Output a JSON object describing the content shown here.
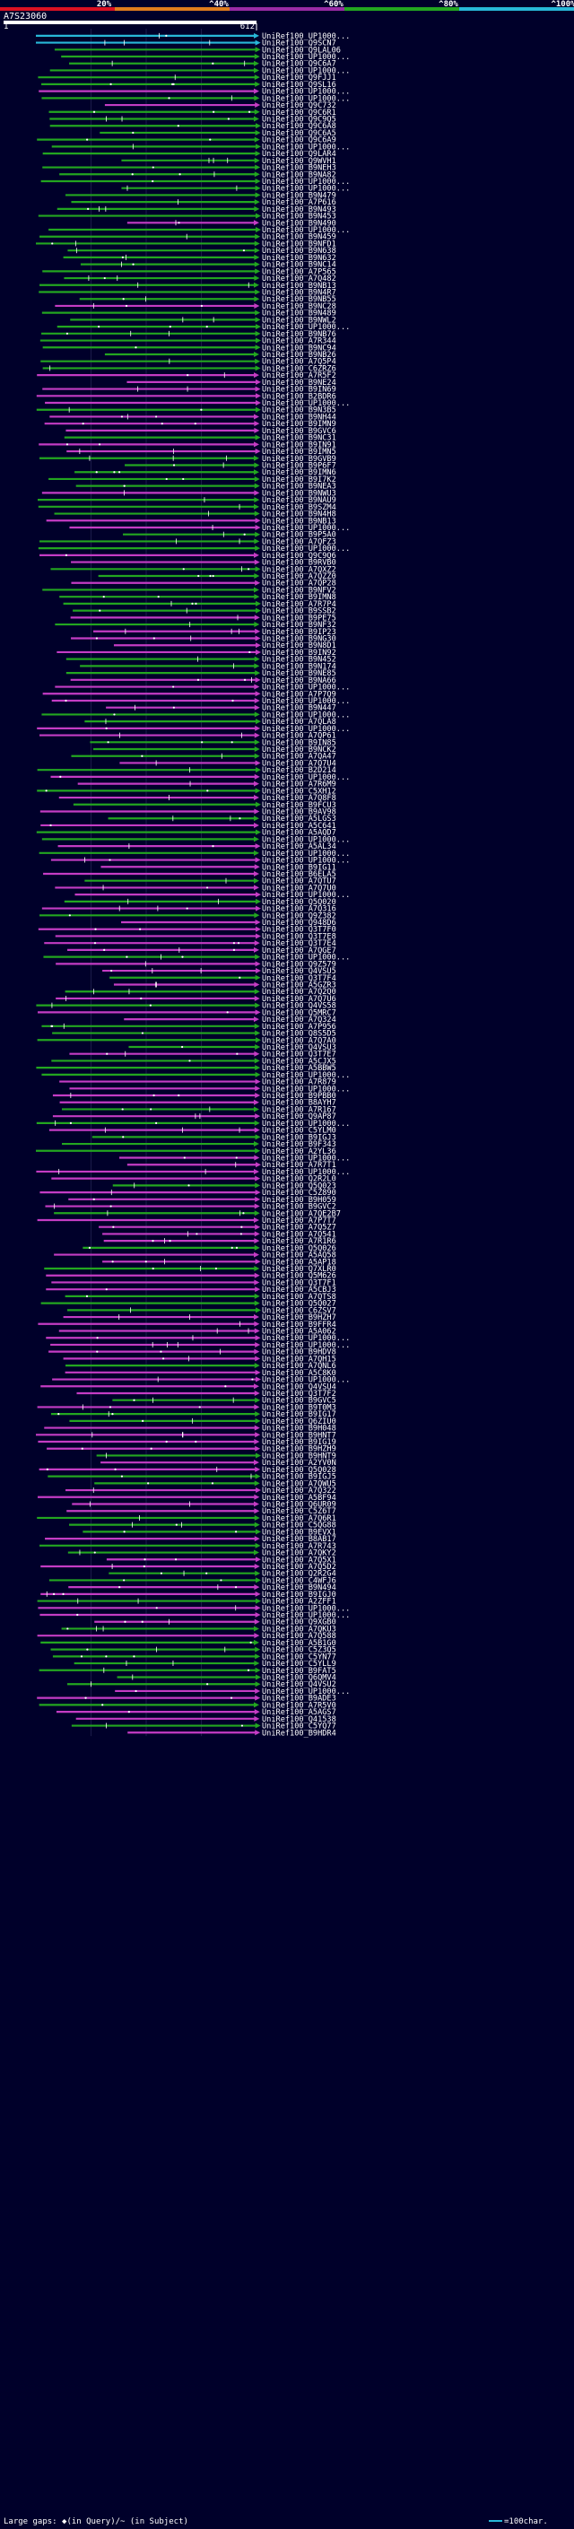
{
  "chart_data": {
    "type": "alignment-overview",
    "query_id": "A7S23060",
    "query_length": 612,
    "axis_ticks": [
      "1",
      "612"
    ],
    "identity_scale": {
      "labels": [
        "20%",
        "^40%",
        "^60%",
        "^80%",
        "^100%"
      ],
      "colors": [
        "#dd1122",
        "#e07c1c",
        "#9a2ba6",
        "#23a620",
        "#28b8d8"
      ]
    },
    "hits": [
      "UniRef100_UP1000...",
      "UniRef100_Q9SCN7",
      "UniRef100_Q9LAL06",
      "UniRef100_UP1000...",
      "UniRef100_Q9C6A7",
      "UniRef100_UP1000...",
      "UniRef100_Q9FJJ1",
      "UniRef100_Q9SL16",
      "UniRef100_UP1000...",
      "UniRef100_UP1000...",
      "UniRef100_Q9C732",
      "UniRef100_Q9C6R1",
      "UniRef100_Q9C9Q5",
      "UniRef100_Q9C6A8",
      "UniRef100_Q9C6A5",
      "UniRef100_Q9C6A9",
      "UniRef100_UP1000...",
      "UniRef100_Q9LAR4",
      "UniRef100_Q9WVH1",
      "UniRef100_B9NEH3",
      "UniRef100_B9NA82",
      "UniRef100_UP1000...",
      "UniRef100_UP1000...",
      "UniRef100_B9N479",
      "UniRef100_A7P616",
      "UniRef100_B9N493",
      "UniRef100_B9N453",
      "UniRef100_B9N490",
      "UniRef100_UP1000...",
      "UniRef100_B9N459",
      "UniRef100_B9NFD1",
      "UniRef100_B9N638",
      "UniRef100_B9N632",
      "UniRef100_B9NC14",
      "UniRef100_A7P565",
      "UniRef100_A7Q482",
      "UniRef100_B9NB13",
      "UniRef100_B9N4R7",
      "UniRef100_B9NB55",
      "UniRef100_B9NC28",
      "UniRef100_B9N489",
      "UniRef100_B9NWL2",
      "UniRef100_UP1000...",
      "UniRef100_B9NB76",
      "UniRef100_A7R344",
      "UniRef100_B9NC94",
      "UniRef100_B9NB26",
      "UniRef100_A7Q5P4",
      "UniRef100_C6ZRZ6",
      "UniRef100_A7R5F2",
      "UniRef100_B9NE24",
      "UniRef100_B9IN69",
      "UniRef100_B2BDR6",
      "UniRef100_UP1000...",
      "UniRef100_B9N3B5",
      "UniRef100_B9NH44",
      "UniRef100_B9IMN9",
      "UniRef100_B9GVC6",
      "UniRef100_B9NC31",
      "UniRef100_B9IN91",
      "UniRef100_B9IMN5",
      "UniRef100_B9GVB9",
      "UniRef100_B9P6F7",
      "UniRef100_B9IMN6",
      "UniRef100_B9I7K2",
      "UniRef100_B9NEA3",
      "UniRef100_B9NWU3",
      "UniRef100_B9NAU9",
      "UniRef100_B9SZM4",
      "UniRef100_B9N4H8",
      "UniRef100_B9NB13",
      "UniRef100_UP1000...",
      "UniRef100_B9P5A0",
      "UniRef100_A7QFZ3",
      "UniRef100_UP1000...",
      "UniRef100_Q9C9Q6",
      "UniRef100_B9RVB0",
      "UniRef100_A7QXZ2",
      "UniRef100_A7QZZ0",
      "UniRef100_A7QP28",
      "UniRef100_B9NFV2",
      "UniRef100_B9IMN8",
      "UniRef100_A7R7P4",
      "UniRef100_B9SSB2",
      "UniRef100_B9PE75",
      "UniRef100_B9NF32",
      "UniRef100_B9IP23",
      "UniRef100_B9NG30",
      "UniRef100_B9N8D1",
      "UniRef100_B9IN92",
      "UniRef100_B9N452",
      "UniRef100_B9N174",
      "UniRef100_B9NE85",
      "UniRef100_B9NA66",
      "UniRef100_UP1000...",
      "UniRef100_A7P7Q9",
      "UniRef100_UP1000...",
      "UniRef100_B9N447",
      "UniRef100_UP1000...",
      "UniRef100_A7QLA8",
      "UniRef100_UP1000...",
      "UniRef100_A7QP61",
      "UniRef100_B9IN85",
      "UniRef100_B9NCK2",
      "UniRef100_A7QA47",
      "UniRef100_A7Q7U4",
      "UniRef100_B2D214",
      "UniRef100_UP1000...",
      "UniRef100_A7R6M9",
      "UniRef100_C5XH12",
      "UniRef100_A7Q8F8",
      "UniRef100_B9FCU3",
      "UniRef100_B9AV98",
      "UniRef100_A5LGS3",
      "UniRef100_A5C641",
      "UniRef100_A5AQD7",
      "UniRef100_UP1000...",
      "UniRef100_A5AL34",
      "UniRef100_UP1000...",
      "UniRef100_UP1000...",
      "UniRef100_B9IG11",
      "UniRef100_B6ELA5",
      "UniRef100_A7QTU7",
      "UniRef100_A7Q7U0",
      "UniRef100_UP1000...",
      "UniRef100_Q5Q020",
      "UniRef100_A7Q316",
      "UniRef100_Q9Z382",
      "UniRef100_Q948D6",
      "UniRef100_Q3T7F0",
      "UniRef100_Q3T7E8",
      "UniRef100_Q3T7E4",
      "UniRef100_A7QGE7",
      "UniRef100_UP1000...",
      "UniRef100_Q9Z579",
      "UniRef100_Q4VSU5",
      "UniRef100_Q3T7F4",
      "UniRef100_A5GZR3",
      "UniRef100_A7Q2Q0",
      "UniRef100_A7Q7U6",
      "UniRef100_Q4VS58",
      "UniRef100_Q5MRC7",
      "UniRef100_A7Q324",
      "UniRef100_A7P956",
      "UniRef100_Q8S5D5",
      "UniRef100_A7Q7A0",
      "UniRef100_Q4VSU3",
      "UniRef100_Q3T7E7",
      "UniRef100_A5CJX5",
      "UniRef100_A5BBW5",
      "UniRef100_UP1000...",
      "UniRef100_A7R879",
      "UniRef100_UP1000...",
      "UniRef100_B9PBB0",
      "UniRef100_B8AYH7",
      "UniRef100_A7R167",
      "UniRef100_Q9AP87",
      "UniRef100_UP1000...",
      "UniRef100_C5YLM0",
      "UniRef100_B9IGJ3",
      "UniRef100_B9F343",
      "UniRef100_A2YL36",
      "UniRef100_UP1000...",
      "UniRef100_A7R7T1",
      "UniRef100_UP1000...",
      "UniRef100_Q2R2L0",
      "UniRef100_Q5Q023",
      "UniRef100_C5Z890",
      "UniRef100_B9H059",
      "UniRef100_B9GVC2",
      "UniRef100_A7QE2B7",
      "UniRef100_A7P7T7",
      "UniRef100_A7Q5Z7",
      "UniRef100_A7Q541",
      "UniRef100_A7R1R6",
      "UniRef100_Q5Q026",
      "UniRef100_A5AQ58",
      "UniRef100_A5AP18",
      "UniRef100_Q7XLR0",
      "UniRef100_Q5M626",
      "UniRef100_Q3T7F1",
      "UniRef100_A5CBJ3",
      "UniRef100_A7QTS8",
      "UniRef100_Q5Q027",
      "UniRef100_C6ZSV7",
      "UniRef100_B9HZH7",
      "UniRef100_B9FFR4",
      "UniRef100_A5A062",
      "UniRef100_UP1000...",
      "UniRef100_UP1000...",
      "UniRef100_B9HDV8",
      "UniRef100_A7QH15",
      "UniRef100_A7QNL6",
      "UniRef100_A5C8K0",
      "UniRef100_UP1000...",
      "UniRef100_Q4VSU4",
      "UniRef100_Q3T7F2",
      "UniRef100_B9GVC5",
      "UniRef100_B9T0M3",
      "UniRef100_B9IG17",
      "UniRef100_Q6ZIU0",
      "UniRef100_B9H048",
      "UniRef100_B9HNT7",
      "UniRef100_B9IG19",
      "UniRef100_B9HZH9",
      "UniRef100_B9HNT9",
      "UniRef100_A2YV0N",
      "UniRef100_Q5Q028",
      "UniRef100_B9IGJ5",
      "UniRef100_A7QWU5",
      "UniRef100_A7Q322",
      "UniRef100_A5BF94",
      "UniRef100_Q6UR09",
      "UniRef100_C5Z6T7",
      "UniRef100_A7Q6R1",
      "UniRef100_C5QG88",
      "UniRef100_B9EVX1",
      "UniRef100_B8AB17",
      "UniRef100_A7R743",
      "UniRef100_A7QKY2",
      "UniRef100_A7Q5X1",
      "UniRef100_A7Q5D2",
      "UniRef100_Q2R2G4",
      "UniRef100_C4WFJ6",
      "UniRef100_B9N494",
      "UniRef100_B9IGJ0",
      "UniRef100_A2ZFF1",
      "UniRef100_UP1000...",
      "UniRef100_UP1000...",
      "UniRef100_Q9XGB0",
      "UniRef100_A7QKU3",
      "UniRef100_A7Q588",
      "UniRef100_A5B1G0",
      "UniRef100_C5Z3Q5",
      "UniRef100_C5YN77",
      "UniRef100_C5YLL9",
      "UniRef100_B9FAT5",
      "UniRef100_Q6QMV4",
      "UniRef100_Q4VSU2",
      "UniRef100_UP1000...",
      "UniRef100_B9ADE3",
      "UniRef100_A7R5V0",
      "UniRef100_A5AGS7",
      "UniRef100_Q41538",
      "UniRef100_C5YQ77",
      "UniRef100_B9HDR4"
    ],
    "legend": {
      "text": "Large gaps: ◆(in Query)/~ (in Subject)",
      "scale_text": "=100char."
    }
  }
}
